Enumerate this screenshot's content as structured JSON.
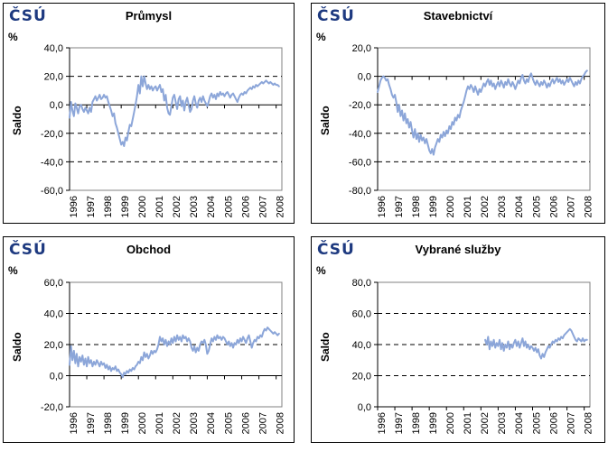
{
  "logo_text": "ČSÚ",
  "percent_label": "%",
  "y_axis_label": "Saldo",
  "x_tick_labels": [
    "1996",
    "1997",
    "1998",
    "1999",
    "2000",
    "2001",
    "2002",
    "2003",
    "2004",
    "2005",
    "2006",
    "2007",
    "2008"
  ],
  "colors": {
    "line_series": "#8CA6D9",
    "logo_navy": "#1E3A80",
    "plot_border": "#808080",
    "axis": "#000000",
    "panel_border": "#000000"
  },
  "chart_data": [
    {
      "type": "line",
      "title": "Průmysl",
      "unit": "%",
      "ylabel": "Saldo",
      "ylim": [
        -60,
        40
      ],
      "yticks": [
        {
          "v": 40,
          "label": "40,0"
        },
        {
          "v": 20,
          "label": "20,0"
        },
        {
          "v": 0,
          "label": "0,0"
        },
        {
          "v": -20,
          "label": "-20,0"
        },
        {
          "v": -40,
          "label": "-40,0"
        },
        {
          "v": -60,
          "label": "-60,0"
        }
      ],
      "x_start": 1996.0,
      "x_step_years": 0.0833333,
      "values": [
        -9,
        2,
        -4,
        -8,
        1,
        -2,
        -6,
        -1,
        0,
        -3,
        -5,
        -2,
        -4,
        -6,
        -2,
        -5,
        2,
        4,
        6,
        3,
        5,
        7,
        4,
        5,
        7,
        5,
        6,
        2,
        -1,
        -4,
        -8,
        -6,
        -13,
        -16,
        -20,
        -24,
        -28,
        -26,
        -29,
        -23,
        -25,
        -19,
        -14,
        -15,
        -10,
        -5,
        0,
        6,
        14,
        8,
        20,
        13,
        20,
        15,
        11,
        14,
        11,
        13,
        10,
        12,
        13,
        10,
        12,
        14,
        9,
        11,
        3,
        7,
        -2,
        -6,
        -7,
        -1,
        5,
        7,
        2,
        -3,
        4,
        6,
        -1,
        3,
        -4,
        2,
        5,
        0,
        -5,
        -3,
        3,
        6,
        1,
        -2,
        3,
        5,
        2,
        6,
        3,
        1,
        -1,
        2,
        6,
        8,
        5,
        7,
        4,
        8,
        6,
        9,
        7,
        8,
        6,
        8,
        9,
        7,
        5,
        7,
        8,
        6,
        4,
        2,
        5,
        7,
        8,
        7,
        9,
        8,
        10,
        11,
        12,
        11,
        13,
        12,
        14,
        13,
        14,
        15,
        16,
        15,
        16,
        17,
        16,
        15,
        16,
        15,
        14,
        15,
        14,
        14,
        13
      ]
    },
    {
      "type": "line",
      "title": "Stavebnictví",
      "unit": "%",
      "ylabel": "Saldo",
      "ylim": [
        -80,
        20
      ],
      "yticks": [
        {
          "v": 20,
          "label": "20,0"
        },
        {
          "v": 0,
          "label": "0,0"
        },
        {
          "v": -20,
          "label": "-20,0"
        },
        {
          "v": -40,
          "label": "-40,0"
        },
        {
          "v": -60,
          "label": "-60,0"
        },
        {
          "v": -80,
          "label": "-80,0"
        }
      ],
      "x_start": 1996.0,
      "x_step_years": 0.0833333,
      "values": [
        -11,
        -7,
        -3,
        -1,
        0,
        -1,
        -3,
        -2,
        -6,
        -9,
        -13,
        -15,
        -13,
        -18,
        -25,
        -20,
        -28,
        -24,
        -31,
        -26,
        -33,
        -30,
        -36,
        -32,
        -38,
        -43,
        -37,
        -44,
        -40,
        -46,
        -41,
        -45,
        -43,
        -47,
        -44,
        -48,
        -52,
        -54,
        -51,
        -55,
        -50,
        -47,
        -44,
        -46,
        -41,
        -43,
        -39,
        -42,
        -38,
        -40,
        -35,
        -37,
        -32,
        -34,
        -29,
        -31,
        -27,
        -29,
        -24,
        -21,
        -18,
        -14,
        -10,
        -7,
        -9,
        -6,
        -8,
        -11,
        -7,
        -10,
        -13,
        -9,
        -11,
        -8,
        -5,
        -7,
        -4,
        -2,
        -6,
        -3,
        -7,
        -5,
        -9,
        -6,
        -4,
        -7,
        -3,
        -5,
        -8,
        -4,
        -6,
        -2,
        -5,
        -7,
        -4,
        -6,
        -9,
        -6,
        -3,
        -5,
        -1,
        1,
        -3,
        -5,
        -2,
        -4,
        0,
        2,
        -1,
        -4,
        -6,
        -3,
        -5,
        -7,
        -4,
        -6,
        -3,
        -5,
        -8,
        -5,
        -7,
        -4,
        -2,
        -5,
        -3,
        -1,
        -4,
        -2,
        -5,
        -3,
        -6,
        -4,
        -2,
        -4,
        -1,
        -3,
        -5,
        -7,
        -4,
        -6,
        -3,
        -5,
        -2,
        0,
        1,
        3,
        4
      ]
    },
    {
      "type": "line",
      "title": "Obchod",
      "unit": "%",
      "ylabel": "Saldo",
      "ylim": [
        -20,
        60
      ],
      "yticks": [
        {
          "v": 60,
          "label": "60,0"
        },
        {
          "v": 40,
          "label": "40,0"
        },
        {
          "v": 20,
          "label": "20,0"
        },
        {
          "v": 0,
          "label": "0,0"
        },
        {
          "v": -20,
          "label": "-20,0"
        }
      ],
      "x_start": 1996.0,
      "x_step_years": 0.0833333,
      "values": [
        7,
        19,
        10,
        16,
        8,
        14,
        6,
        12,
        9,
        13,
        7,
        11,
        6,
        12,
        8,
        10,
        6,
        9,
        7,
        10,
        8,
        6,
        9,
        7,
        8,
        5,
        7,
        4,
        6,
        3,
        5,
        4,
        6,
        3,
        4,
        2,
        1,
        -1,
        2,
        1,
        3,
        2,
        4,
        3,
        5,
        4,
        6,
        7,
        9,
        8,
        12,
        10,
        15,
        12,
        14,
        11,
        13,
        16,
        14,
        16,
        15,
        17,
        20,
        25,
        22,
        24,
        20,
        23,
        19,
        22,
        20,
        24,
        21,
        25,
        22,
        26,
        23,
        25,
        22,
        26,
        24,
        25,
        22,
        24,
        22,
        18,
        16,
        19,
        15,
        18,
        16,
        20,
        22,
        21,
        23,
        20,
        14,
        16,
        20,
        24,
        22,
        25,
        23,
        26,
        24,
        25,
        23,
        25,
        24,
        22,
        20,
        22,
        19,
        21,
        18,
        21,
        20,
        23,
        21,
        24,
        22,
        25,
        23,
        21,
        24,
        26,
        22,
        18,
        21,
        23,
        22,
        25,
        24,
        26,
        25,
        28,
        30,
        29,
        31,
        30,
        29,
        28,
        27,
        28,
        27,
        26,
        27
      ]
    },
    {
      "type": "line",
      "title": "Vybrané služby",
      "unit": "%",
      "ylabel": "Saldo",
      "ylim": [
        0,
        80
      ],
      "yticks": [
        {
          "v": 80,
          "label": "80,0"
        },
        {
          "v": 60,
          "label": "60,0"
        },
        {
          "v": 40,
          "label": "40,0"
        },
        {
          "v": 20,
          "label": "20,0"
        },
        {
          "v": 0,
          "label": "0,0"
        }
      ],
      "x_start": 2002.25,
      "x_step_years": 0.0833333,
      "values": [
        43,
        40,
        45,
        37,
        42,
        39,
        43,
        38,
        41,
        39,
        43,
        37,
        41,
        36,
        40,
        38,
        42,
        37,
        40,
        38,
        41,
        43,
        39,
        42,
        38,
        41,
        44,
        39,
        42,
        38,
        40,
        37,
        39,
        38,
        36,
        38,
        35,
        37,
        33,
        31,
        34,
        32,
        35,
        37,
        39,
        38,
        40,
        42,
        41,
        43,
        42,
        44,
        43,
        45,
        44,
        46,
        47,
        48,
        49,
        50,
        49,
        47,
        45,
        43,
        42,
        44,
        43,
        42,
        44,
        42,
        43,
        43
      ]
    }
  ]
}
